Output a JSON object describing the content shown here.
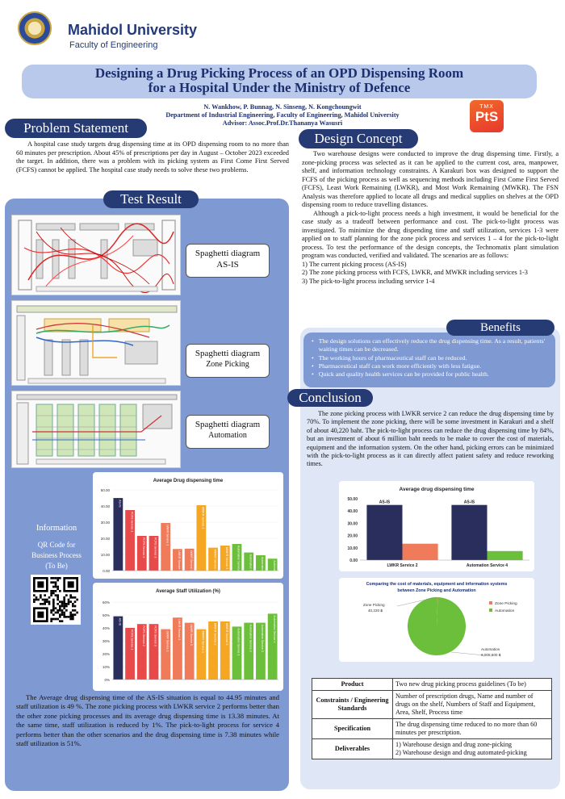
{
  "header": {
    "university": "Mahidol University",
    "faculty": "Faculty of Engineering",
    "title_line1": "Designing a Drug Picking Process of an OPD Dispensing Room",
    "title_line2": "for a Hospital Under the Ministry of Defence",
    "authors": "N. Wankhow, P. Bunnag, N. Sinseng, N. Kongchoungwit",
    "department": "Department of Industrial Engineering, Faculty of Engineering, Mahidol University",
    "advisor": "Advisor: Assoc.Prof.Dr.Thananya Wasusri",
    "logo_top": "TMX",
    "logo_main": "PtS"
  },
  "problem": {
    "heading": "Problem Statement",
    "text": "A hospital case study targets drug dispensing time at its OPD dispensing room to no more than 60 minutes per prescription. About 45% of prescriptions per day in August – October 2023 exceeded the target. In addition, there was a problem with its picking system as First Come First Served (FCFS) cannot be applied. The hospital case study needs to solve these two problems."
  },
  "design": {
    "heading": "Design Concept",
    "p1": "Two warehouse designs were conducted to improve the drug dispensing time. Firstly, a zone-picking process was selected as it can be applied to the current cost, area, manpower, shelf, and information technology constraints. A Karakuri box was designed to support the FCFS of the picking process as well as sequencing methods including First Come First Served (FCFS), Least Work Remaining (LWKR), and Most Work Remaining (MWKR). The FSN Analysis was therefore applied to locate all drugs and medical supplies on shelves at the OPD dispensing room to reduce travelling distances.",
    "p2": "Although a pick-to-light process needs a high investment, it would be beneficial for the case study as a tradeoff between performance and cost. The pick-to-light process was investigated. To minimize the drug dispending time and staff utilization, services 1-3 were applied on to staff planning for the zone pick process and services 1 – 4 for the pick-to-light process. To test the performance of the design concepts, the Technomatix plant simulation program was conducted, verified and validated. The scenarios are as follows:",
    "s1": "1) The current picking process (AS-IS)",
    "s2": "2) The zone picking process with FCFS, LWKR, and MWKR including services 1-3",
    "s3": "3) The pick-to-light process including service 1-4"
  },
  "test_result": {
    "heading": "Test Result",
    "label1_a": "Spaghetti diagram",
    "label1_b": "AS-IS",
    "label2_a": "Spaghetti diagram",
    "label2_b": "Zone Picking",
    "label3_a": "Spaghetti diagram",
    "label3_b": "Automation",
    "info_heading": "Information",
    "info_text1": "QR Code for",
    "info_text2": "Business Process",
    "info_text3": "(To Be)",
    "summary": "The Average drug dispensing time of the AS-IS situation is equal to 44.95 minutes and staff utilization is 49 %. The zone picking process with LWKR service 2 performs better than the other zone picking processes and its average drug dispensing time is 13.38 minutes. At the same time, staff utilization is reduced by 1%. The pick-to-light process for service 4 performs better than the other scenarios and the drug dispensing time is 7.38 minutes while staff utilization is 51%."
  },
  "benefits": {
    "heading": "Benefits",
    "items": [
      "The design solutions can effectively reduce the drug dispensing time. As a result, patients' waiting times can be decreased.",
      "The working hours of pharmaceutical staff can be reduced.",
      "Pharmaceutical staff can work more efficiently with less fatigue.",
      "Quick and quality health services can be provided for public health."
    ]
  },
  "conclusion": {
    "heading": "Conclusion",
    "text": "The zone picking process with LWKR service 2 can reduce the drug dispensing time by 70%. To implement the zone picking, there will be some investment in Karakuri and a shelf of about 40,220 baht. The pick-to-light process can reduce the drug dispensing time by 84%, but an investment of about 6 million baht needs to be make to cover the cost of materials, equipment and the information system. On the other hand, picking errors can be minimized with the pick-to-light process as it can directly affect patient safety and reduce reworking times."
  },
  "spec_table": {
    "rows": [
      {
        "k": "Product",
        "v": "Two new drug picking process guidelines (To be)"
      },
      {
        "k": "Constraints / Engineering Standards",
        "v": "Number of prescription drugs, Name and number of drugs on the shelf, Numbers of Staff and Equipment, Area, Shelf, Process time"
      },
      {
        "k": "Specification",
        "v": "The drug dispensing time reduced to no more than 60 minutes per prescription."
      },
      {
        "k": "Deliverables",
        "v": "1) Warehouse design and drug zone-picking\n2) Warehouse design and drug automated-picking"
      }
    ]
  },
  "chart_data": [
    {
      "type": "bar",
      "title": "Average Drug dispensing time",
      "categories": [
        "AS-IS",
        "FCFS Service 1",
        "FCFS Service 2",
        "FCFS Service 3",
        "LWKR Service 1",
        "LWKR Service 2",
        "LWKR Service 3",
        "MWKR Service 1",
        "MWKR Service 2",
        "MWKR Service 3",
        "Automation Service 1",
        "Automation Service 2",
        "Automation Service 3",
        "Automation Service 4"
      ],
      "values": [
        44.95,
        37.5,
        21.5,
        21.5,
        29.5,
        13.38,
        13.6,
        40.5,
        14.2,
        15.5,
        16.5,
        11.2,
        9.5,
        7.38
      ],
      "colors": [
        "#2a2e5c",
        "#e84a4a",
        "#e84a4a",
        "#e84a4a",
        "#ef7b5a",
        "#ef7b5a",
        "#ef7b5a",
        "#f5a623",
        "#f5a623",
        "#f5a623",
        "#6bbf3a",
        "#6bbf3a",
        "#6bbf3a",
        "#6bbf3a"
      ],
      "ylim": [
        0,
        50
      ],
      "yticks": [
        "0.00",
        "10.00",
        "20.00",
        "30.00",
        "40.00",
        "50.00"
      ]
    },
    {
      "type": "bar",
      "title": "Average Staff  Utilization (%)",
      "categories": [
        "AS-IS",
        "FCFS Service 1",
        "FCFS Service 2",
        "FCFS Service 3",
        "LWKR Service 1",
        "LWKR Service 2",
        "LWKR Service 3",
        "MWKR Service 1",
        "MWKR Service 2",
        "MWKR Service 3",
        "Automation Service 1",
        "Automation Service 2",
        "Automation Service 3",
        "Automation Service 4"
      ],
      "values": [
        49,
        40,
        43,
        43,
        39,
        48,
        44,
        39,
        45,
        45,
        41,
        44,
        44,
        51
      ],
      "colors": [
        "#2a2e5c",
        "#e84a4a",
        "#e84a4a",
        "#e84a4a",
        "#ef7b5a",
        "#ef7b5a",
        "#ef7b5a",
        "#f5a623",
        "#f5a623",
        "#f5a623",
        "#6bbf3a",
        "#6bbf3a",
        "#6bbf3a",
        "#6bbf3a"
      ],
      "ylim": [
        0,
        60
      ],
      "yticks": [
        "0%",
        "10%",
        "20%",
        "30%",
        "40%",
        "50%",
        "60%"
      ]
    },
    {
      "type": "bar",
      "title": "Average drug dispensing time",
      "categories": [
        "LWKR Service 2",
        "Automation Service 4"
      ],
      "series": [
        {
          "name": "AS-IS",
          "values": [
            44.95,
            44.95
          ],
          "color": "#2a2e5c"
        },
        {
          "name": "",
          "values": [
            13.38,
            7.38
          ],
          "color": [
            "#ef7b5a",
            "#6bbf3a"
          ]
        }
      ],
      "ylim": [
        0,
        50
      ],
      "yticks": [
        "0.00",
        "10.00",
        "20.00",
        "30.00",
        "40.00",
        "50.00"
      ]
    },
    {
      "type": "pie",
      "title_line1": "Comparing the cost of materials, equipment and information systems",
      "title_line2": "between Zone Picking and Automation",
      "slices": [
        {
          "name": "Zone Picking",
          "value": 40220,
          "label": "40,220 ฿",
          "color": "#ef7b5a"
        },
        {
          "name": "Automation",
          "value": 6008600,
          "label": "6,008,600 ฿",
          "color": "#6bbf3a"
        }
      ]
    }
  ]
}
